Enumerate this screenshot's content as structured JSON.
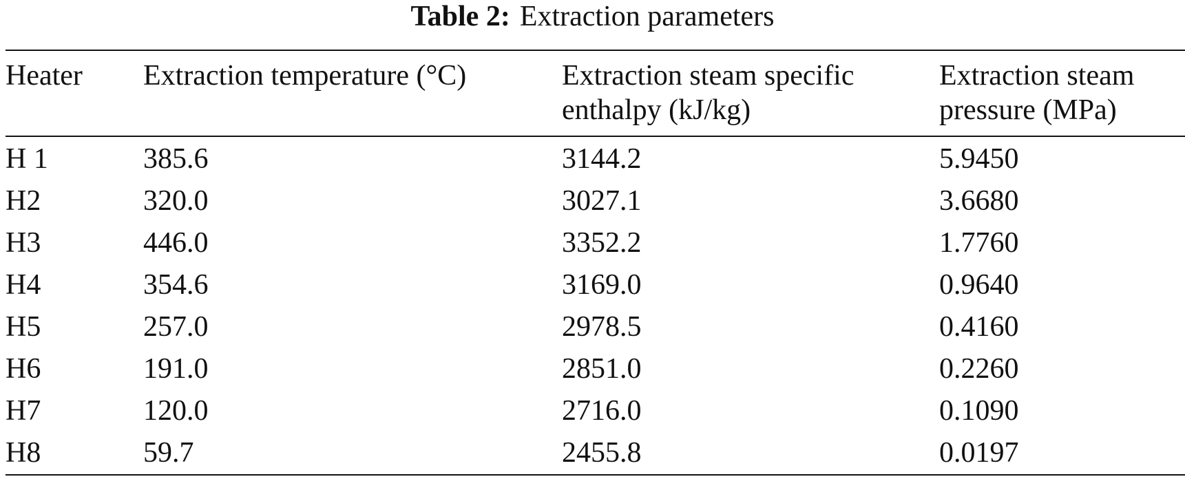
{
  "caption": {
    "label": "Table 2:",
    "title": "Extraction parameters"
  },
  "table": {
    "headers": [
      [
        "Heater"
      ],
      [
        "Extraction temperature (°C)"
      ],
      [
        "Extraction steam specific",
        "enthalpy (kJ/kg)"
      ],
      [
        "Extraction steam",
        "pressure (MPa)"
      ]
    ],
    "rows": [
      [
        "H 1",
        "385.6",
        "3144.2",
        "5.9450"
      ],
      [
        "H2",
        "320.0",
        "3027.1",
        "3.6680"
      ],
      [
        "H3",
        "446.0",
        "3352.2",
        "1.7760"
      ],
      [
        "H4",
        "354.6",
        "3169.0",
        "0.9640"
      ],
      [
        "H5",
        "257.0",
        "2978.5",
        "0.4160"
      ],
      [
        "H6",
        "191.0",
        "2851.0",
        "0.2260"
      ],
      [
        "H7",
        "120.0",
        "2716.0",
        "0.1090"
      ],
      [
        "H8",
        "59.7",
        "2455.8",
        "0.0197"
      ]
    ]
  }
}
